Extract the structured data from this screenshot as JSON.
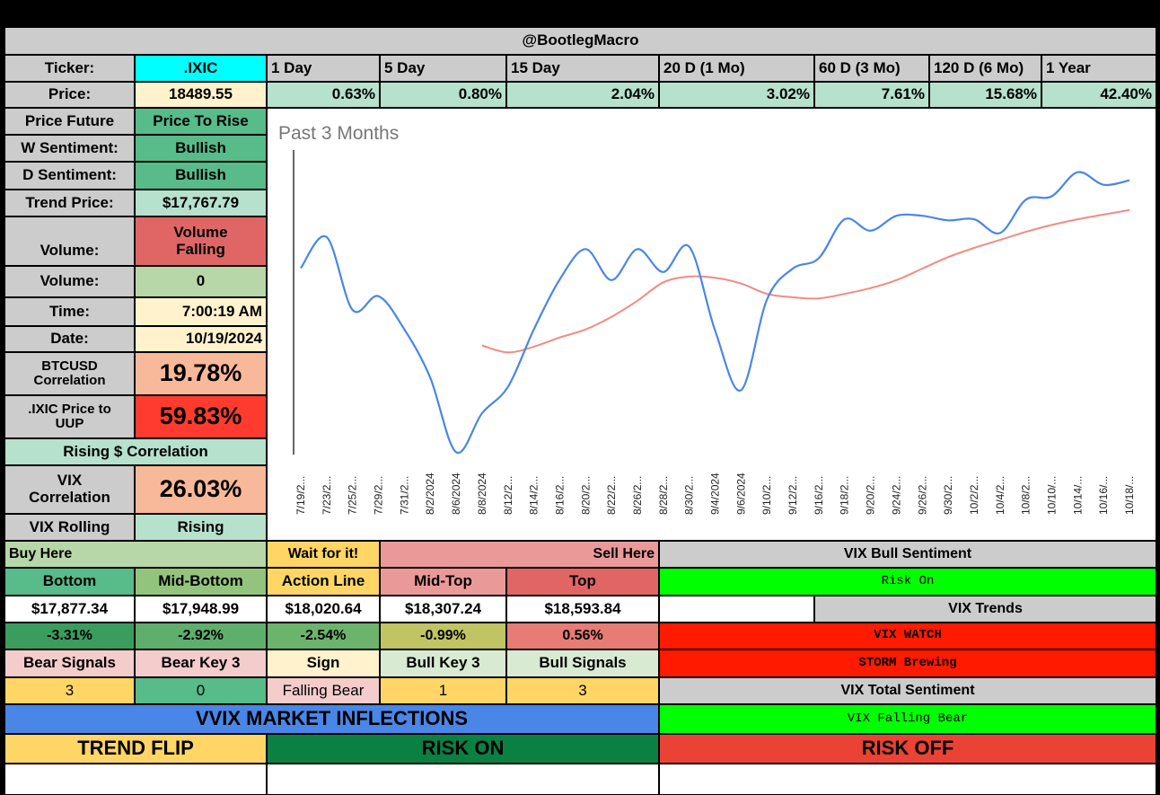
{
  "header": {
    "title": "@BootlegMacro"
  },
  "ticker": {
    "label": "Ticker:",
    "value": ".IXIC",
    "periods": [
      "1 Day",
      "5 Day",
      "15 Day",
      "20 D (1 Mo)",
      "60 D (3 Mo)",
      "120 D (6 Mo)",
      "1 Year"
    ],
    "price_label": "Price:",
    "price_value": "18489.55",
    "period_changes": [
      "0.63%",
      "0.80%",
      "2.04%",
      "3.02%",
      "7.61%",
      "15.68%",
      "42.40%"
    ]
  },
  "left_panel": {
    "price_future_label": "Price Future",
    "price_future_value": "Price To Rise",
    "w_sentiment_label": "W Sentiment:",
    "w_sentiment_value": "Bullish",
    "d_sentiment_label": "D Sentiment:",
    "d_sentiment_value": "Bullish",
    "trend_price_label": "Trend Price:",
    "trend_price_value": "$17,767.79",
    "volume_label": "Volume:",
    "volume_status": "Volume Falling",
    "volume2_label": "Volume:",
    "volume2_value": "0",
    "time_label": "Time:",
    "time_value": "7:00:19 AM",
    "date_label": "Date:",
    "date_value": "10/19/2024",
    "btc_label": "BTCUSD Correlation",
    "btc_value": "19.78%",
    "uup_label": ".IXIC Price to UUP",
    "uup_value": "59.83%",
    "rising_label": "Rising $ Correlation",
    "vix_corr_label": "VIX Correlation",
    "vix_corr_value": "26.03%",
    "vix_rolling_label": "VIX Rolling",
    "vix_rolling_value": "Rising"
  },
  "levels": {
    "buy_here": "Buy Here",
    "wait": "Wait for it!",
    "sell_here": "Sell Here",
    "headers": [
      "Bottom",
      "Mid-Bottom",
      "Action Line",
      "Mid-Top",
      "Top"
    ],
    "prices": [
      "$17,877.34",
      "$17,948.99",
      "$18,020.64",
      "$18,307.24",
      "$18,593.84"
    ],
    "pcts": [
      "-3.31%",
      "-2.92%",
      "-2.54%",
      "-0.99%",
      "0.56%"
    ],
    "signal_headers": [
      "Bear Signals",
      "Bear Key 3",
      "Sign",
      "Bull Key 3",
      "Bull Signals"
    ],
    "signal_values": [
      "3",
      "0",
      "Falling Bear",
      "1",
      "3"
    ]
  },
  "vix": {
    "bull_sentiment_label": "VIX Bull Sentiment",
    "bull_sentiment_value": "Risk On",
    "trends_label": "VIX Trends",
    "watch": "VIX WATCH",
    "storm": "STORM Brewing",
    "total_label": "VIX Total Sentiment",
    "total_value": "VIX Falling Bear"
  },
  "vvix": {
    "title": "VVIX MARKET INFLECTIONS",
    "trend_flip": "TREND FLIP",
    "risk_on": "RISK ON",
    "risk_off": "RISK OFF"
  },
  "colors": {
    "gray": "#cccccc",
    "cyan": "#00ffff",
    "pale_yellow": "#fff2cc",
    "mint": "#b6e1cd",
    "green": "#57bb8a",
    "dark_green": "#0b8043",
    "light_green": "#b7d7a8",
    "salmon": "#e67c73",
    "red": "#ff0000",
    "peach": "#f8b99a",
    "pink": "#f4cccc",
    "gold": "#ffd666",
    "lime": "#00ff00",
    "blue": "#4a86e8",
    "risk_off_red": "#ea4335",
    "price_line": "#4a86e8",
    "trend_line": "#f28b82"
  },
  "chart_data": {
    "type": "line",
    "title": "Past 3 Months",
    "xlabel": "",
    "ylabel": "",
    "x": [
      "7/19/2...",
      "7/23/2...",
      "7/25/2...",
      "7/29/2...",
      "7/31/2...",
      "8/2/2024",
      "8/6/2024",
      "8/8/2024",
      "8/12/2...",
      "8/14/2...",
      "8/16/2...",
      "8/20/2...",
      "8/22/2...",
      "8/26/2...",
      "8/28/2...",
      "8/30/2...",
      "9/4/2024",
      "9/6/2024",
      "9/10/2...",
      "9/12/2...",
      "9/16/2...",
      "9/18/2...",
      "9/20/2...",
      "9/24/2...",
      "9/26/2...",
      "9/30/2...",
      "10/2/2...",
      "10/4/2...",
      "10/8/2...",
      "10/10/...",
      "10/14/...",
      "10/16/...",
      "10/18/..."
    ],
    "ylim": [
      16100,
      18800
    ],
    "series": [
      {
        "values": [
          17725,
          17995,
          17360,
          17480,
          17190,
          16770,
          16120,
          16460,
          16690,
          17190,
          17625,
          17890,
          17620,
          17890,
          17690,
          17910,
          17180,
          16660,
          17450,
          17720,
          17810,
          18150,
          18050,
          18180,
          18180,
          18140,
          18150,
          18030,
          18320,
          18350,
          18560,
          18450,
          18489
        ],
        "color": "#4a86e8"
      },
      {
        "values": [
          null,
          null,
          null,
          null,
          null,
          null,
          null,
          17050,
          16990,
          17040,
          17120,
          17190,
          17300,
          17440,
          17600,
          17650,
          17640,
          17590,
          17500,
          17470,
          17460,
          17500,
          17550,
          17620,
          17720,
          17820,
          17900,
          17970,
          18040,
          18100,
          18150,
          18190,
          18230
        ],
        "color": "#f28b82"
      }
    ]
  }
}
